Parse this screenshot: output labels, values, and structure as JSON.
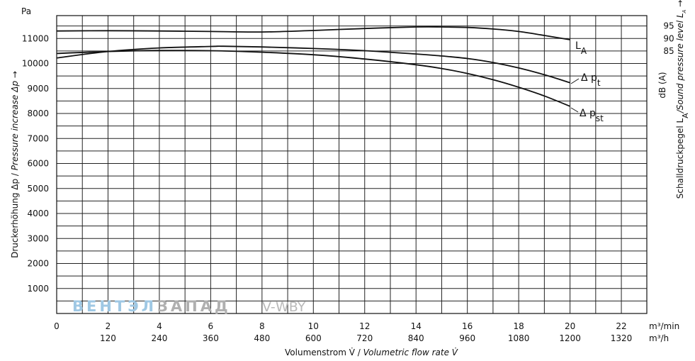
{
  "chart_data": {
    "type": "line",
    "y_unit": "Pa",
    "ylabel": "Druckerhöhung Δp / Pressure increase  Δp →",
    "ylabel_de": "Druckerhöhung Δp / ",
    "ylabel_en": "Pressure increase  Δp →",
    "ylim": [
      0,
      12000
    ],
    "y_ticks": [
      1000,
      2000,
      3000,
      4000,
      5000,
      6000,
      7000,
      8000,
      9000,
      10000,
      11000
    ],
    "xlim": [
      0,
      23
    ],
    "x_ticks_min": [
      0,
      2,
      4,
      6,
      8,
      10,
      12,
      14,
      16,
      18,
      20,
      22
    ],
    "x_ticks_h": [
      {
        "x": 2,
        "label": "120"
      },
      {
        "x": 4,
        "label": "240"
      },
      {
        "x": 6,
        "label": "360"
      },
      {
        "x": 8,
        "label": "480"
      },
      {
        "x": 10,
        "label": "600"
      },
      {
        "x": 12,
        "label": "720"
      },
      {
        "x": 14,
        "label": "840"
      },
      {
        "x": 16,
        "label": "960"
      },
      {
        "x": 18,
        "label": "1080"
      },
      {
        "x": 20,
        "label": "1200"
      },
      {
        "x": 22,
        "label": "1320"
      }
    ],
    "x_unit_min": "m³/min",
    "x_unit_h": "m³/h",
    "xlabel_de": "Volumenstrom V̇ / ",
    "xlabel_en": "Volumetric flow rate V̇",
    "right_axis": {
      "unit": "dB (A)",
      "label_de": "Schalldruckpegel L",
      "label_sub": "A",
      "label_en": "/Sound pressure level L",
      "label_en_sub": "A",
      "label_arrow": " →",
      "ticks": [
        {
          "value": 95,
          "y_pa": 11500
        },
        {
          "value": 90,
          "y_pa": 11000
        },
        {
          "value": 85,
          "y_pa": 10500
        }
      ]
    },
    "series": [
      {
        "name": "LA",
        "label_main": "L",
        "label_sub": "A",
        "x": [
          0,
          2,
          4,
          6,
          8,
          10,
          12,
          14,
          15,
          16,
          17,
          18,
          19,
          20
        ],
        "y": [
          11300,
          11310,
          11300,
          11280,
          11260,
          11320,
          11400,
          11460,
          11460,
          11440,
          11380,
          11280,
          11120,
          10950
        ]
      },
      {
        "name": "Δ pt",
        "label_main": "Δ p",
        "label_sub": "t",
        "x": [
          0,
          2,
          4,
          6,
          6.5,
          8,
          10,
          12,
          14,
          15,
          16,
          17,
          18,
          19,
          20
        ],
        "y": [
          10220,
          10480,
          10620,
          10680,
          10690,
          10660,
          10600,
          10510,
          10380,
          10300,
          10200,
          10040,
          9820,
          9550,
          9230
        ]
      },
      {
        "name": "Δ pst",
        "label_main": "Δ p",
        "label_sub": "st",
        "x": [
          0,
          2,
          4,
          6,
          8,
          10,
          12,
          14,
          15,
          16,
          17,
          18,
          19,
          20
        ],
        "y": [
          10400,
          10480,
          10520,
          10510,
          10450,
          10350,
          10180,
          9950,
          9800,
          9600,
          9350,
          9050,
          8700,
          8290
        ]
      }
    ]
  },
  "watermark": {
    "part1": "ВЕНТЭЛ",
    "part2": "ЗАПАД",
    "part3": "V-",
    "part4": "WBY"
  }
}
